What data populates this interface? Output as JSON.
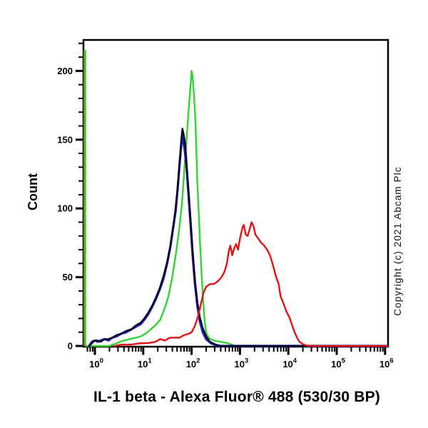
{
  "chart_data": {
    "type": "line",
    "chart_kind": "flow-cytometry-histogram-overlay",
    "title": "IL-1 beta - Alexa Fluor® 488 (530/30 BP)",
    "xlabel": "IL-1 beta - Alexa Fluor® 488 (530/30 BP)",
    "ylabel": "Count",
    "copyright": "Copyright (c) 2021 Abcam Plc",
    "grid": false,
    "legend": false,
    "background": "#ffffff",
    "axis_color": "#000000",
    "x_axis": {
      "scale": "log10",
      "tick_base": "10",
      "tick_exponents": [
        0,
        1,
        2,
        3,
        4,
        5,
        6
      ],
      "minor_ticks": "log positions 2-9 within each decade",
      "range_log10": [
        -0.236,
        6.06
      ]
    },
    "y_axis": {
      "ticks": [
        0,
        50,
        100,
        150,
        200
      ],
      "minor_step": 10,
      "range": [
        0,
        223
      ]
    },
    "left_edge_spike": {
      "logx": -0.21,
      "count": 215,
      "colors": [
        "#7b7b12",
        "#33d333"
      ]
    },
    "series": [
      {
        "name": "green-curve",
        "color": "#33d333",
        "width": 2.4,
        "points": [
          [
            -0.18,
            0
          ],
          [
            0.3,
            0
          ],
          [
            0.45,
            2
          ],
          [
            0.6,
            4
          ],
          [
            0.72,
            5
          ],
          [
            0.85,
            6
          ],
          [
            0.95,
            7
          ],
          [
            1.05,
            9
          ],
          [
            1.15,
            12
          ],
          [
            1.25,
            15
          ],
          [
            1.35,
            19
          ],
          [
            1.45,
            28
          ],
          [
            1.52,
            36
          ],
          [
            1.6,
            50
          ],
          [
            1.68,
            68
          ],
          [
            1.74,
            84
          ],
          [
            1.8,
            103
          ],
          [
            1.85,
            128
          ],
          [
            1.9,
            152
          ],
          [
            1.94,
            172
          ],
          [
            1.97,
            186
          ],
          [
            2.0,
            200
          ],
          [
            2.02,
            196
          ],
          [
            2.05,
            182
          ],
          [
            2.08,
            163
          ],
          [
            2.1,
            140
          ],
          [
            2.12,
            118
          ],
          [
            2.15,
            95
          ],
          [
            2.17,
            78
          ],
          [
            2.19,
            64
          ],
          [
            2.21,
            50
          ],
          [
            2.24,
            32
          ],
          [
            2.27,
            18
          ],
          [
            2.3,
            10
          ],
          [
            2.35,
            6
          ],
          [
            2.45,
            4
          ],
          [
            2.6,
            3
          ],
          [
            2.75,
            2
          ],
          [
            2.9,
            0
          ],
          [
            6.05,
            0
          ]
        ]
      },
      {
        "name": "blue-curve",
        "color": "#2222cc",
        "width": 3.2,
        "points": [
          [
            -0.12,
            0
          ],
          [
            -0.06,
            3
          ],
          [
            0.0,
            4
          ],
          [
            0.06,
            3
          ],
          [
            0.12,
            4
          ],
          [
            0.2,
            5
          ],
          [
            0.28,
            4
          ],
          [
            0.36,
            6
          ],
          [
            0.45,
            7
          ],
          [
            0.55,
            9
          ],
          [
            0.65,
            10
          ],
          [
            0.75,
            12
          ],
          [
            0.85,
            14
          ],
          [
            0.95,
            16
          ],
          [
            1.02,
            19
          ],
          [
            1.1,
            23
          ],
          [
            1.18,
            28
          ],
          [
            1.26,
            34
          ],
          [
            1.34,
            41
          ],
          [
            1.42,
            49
          ],
          [
            1.5,
            61
          ],
          [
            1.56,
            72
          ],
          [
            1.62,
            86
          ],
          [
            1.67,
            98
          ],
          [
            1.71,
            113
          ],
          [
            1.75,
            131
          ],
          [
            1.78,
            144
          ],
          [
            1.8,
            153
          ],
          [
            1.83,
            148
          ],
          [
            1.86,
            142
          ],
          [
            1.9,
            128
          ],
          [
            1.94,
            108
          ],
          [
            1.98,
            88
          ],
          [
            2.02,
            66
          ],
          [
            2.07,
            45
          ],
          [
            2.12,
            29
          ],
          [
            2.17,
            18
          ],
          [
            2.23,
            10
          ],
          [
            2.3,
            5
          ],
          [
            2.4,
            2
          ],
          [
            2.55,
            0
          ],
          [
            6.05,
            0
          ]
        ]
      },
      {
        "name": "black-curve",
        "color": "#00001e",
        "width": 2.4,
        "points": [
          [
            -0.12,
            0
          ],
          [
            -0.06,
            2
          ],
          [
            0.0,
            4
          ],
          [
            0.06,
            4
          ],
          [
            0.12,
            3
          ],
          [
            0.2,
            5
          ],
          [
            0.28,
            5
          ],
          [
            0.36,
            6
          ],
          [
            0.45,
            8
          ],
          [
            0.55,
            9
          ],
          [
            0.65,
            11
          ],
          [
            0.75,
            12
          ],
          [
            0.85,
            15
          ],
          [
            0.95,
            17
          ],
          [
            1.02,
            20
          ],
          [
            1.1,
            24
          ],
          [
            1.18,
            29
          ],
          [
            1.26,
            35
          ],
          [
            1.34,
            42
          ],
          [
            1.42,
            51
          ],
          [
            1.5,
            62
          ],
          [
            1.56,
            73
          ],
          [
            1.62,
            87
          ],
          [
            1.67,
            100
          ],
          [
            1.71,
            115
          ],
          [
            1.75,
            133
          ],
          [
            1.78,
            146
          ],
          [
            1.81,
            158
          ],
          [
            1.84,
            153
          ],
          [
            1.87,
            146
          ],
          [
            1.9,
            131
          ],
          [
            1.94,
            112
          ],
          [
            1.98,
            92
          ],
          [
            2.02,
            70
          ],
          [
            2.07,
            48
          ],
          [
            2.12,
            32
          ],
          [
            2.17,
            21
          ],
          [
            2.23,
            13
          ],
          [
            2.3,
            7
          ],
          [
            2.38,
            3
          ],
          [
            2.5,
            1
          ],
          [
            2.62,
            0
          ],
          [
            6.05,
            0
          ]
        ]
      },
      {
        "name": "red-curve",
        "color": "#e51212",
        "width": 2.4,
        "points": [
          [
            0.4,
            0
          ],
          [
            0.55,
            1
          ],
          [
            0.75,
            1
          ],
          [
            0.95,
            2
          ],
          [
            1.1,
            2
          ],
          [
            1.25,
            3
          ],
          [
            1.35,
            5
          ],
          [
            1.45,
            4
          ],
          [
            1.55,
            6
          ],
          [
            1.65,
            6
          ],
          [
            1.75,
            6
          ],
          [
            1.85,
            8
          ],
          [
            1.95,
            9
          ],
          [
            2.0,
            10
          ],
          [
            2.06,
            14
          ],
          [
            2.12,
            20
          ],
          [
            2.17,
            27
          ],
          [
            2.21,
            33
          ],
          [
            2.25,
            39
          ],
          [
            2.3,
            43
          ],
          [
            2.38,
            45
          ],
          [
            2.46,
            45
          ],
          [
            2.54,
            47
          ],
          [
            2.62,
            50
          ],
          [
            2.68,
            54
          ],
          [
            2.73,
            60
          ],
          [
            2.77,
            69
          ],
          [
            2.8,
            73
          ],
          [
            2.84,
            66
          ],
          [
            2.88,
            71
          ],
          [
            2.92,
            74
          ],
          [
            2.96,
            70
          ],
          [
            3.0,
            78
          ],
          [
            3.05,
            86
          ],
          [
            3.08,
            88
          ],
          [
            3.12,
            81
          ],
          [
            3.16,
            80
          ],
          [
            3.2,
            85
          ],
          [
            3.24,
            90
          ],
          [
            3.28,
            87
          ],
          [
            3.32,
            81
          ],
          [
            3.38,
            78
          ],
          [
            3.44,
            75
          ],
          [
            3.5,
            73
          ],
          [
            3.56,
            70
          ],
          [
            3.62,
            66
          ],
          [
            3.68,
            59
          ],
          [
            3.74,
            51
          ],
          [
            3.8,
            45
          ],
          [
            3.84,
            36
          ],
          [
            3.9,
            31
          ],
          [
            3.96,
            25
          ],
          [
            4.02,
            21
          ],
          [
            4.08,
            15
          ],
          [
            4.13,
            10
          ],
          [
            4.18,
            6
          ],
          [
            4.23,
            3
          ],
          [
            4.32,
            1
          ],
          [
            4.42,
            0
          ],
          [
            6.05,
            0
          ]
        ]
      }
    ]
  }
}
